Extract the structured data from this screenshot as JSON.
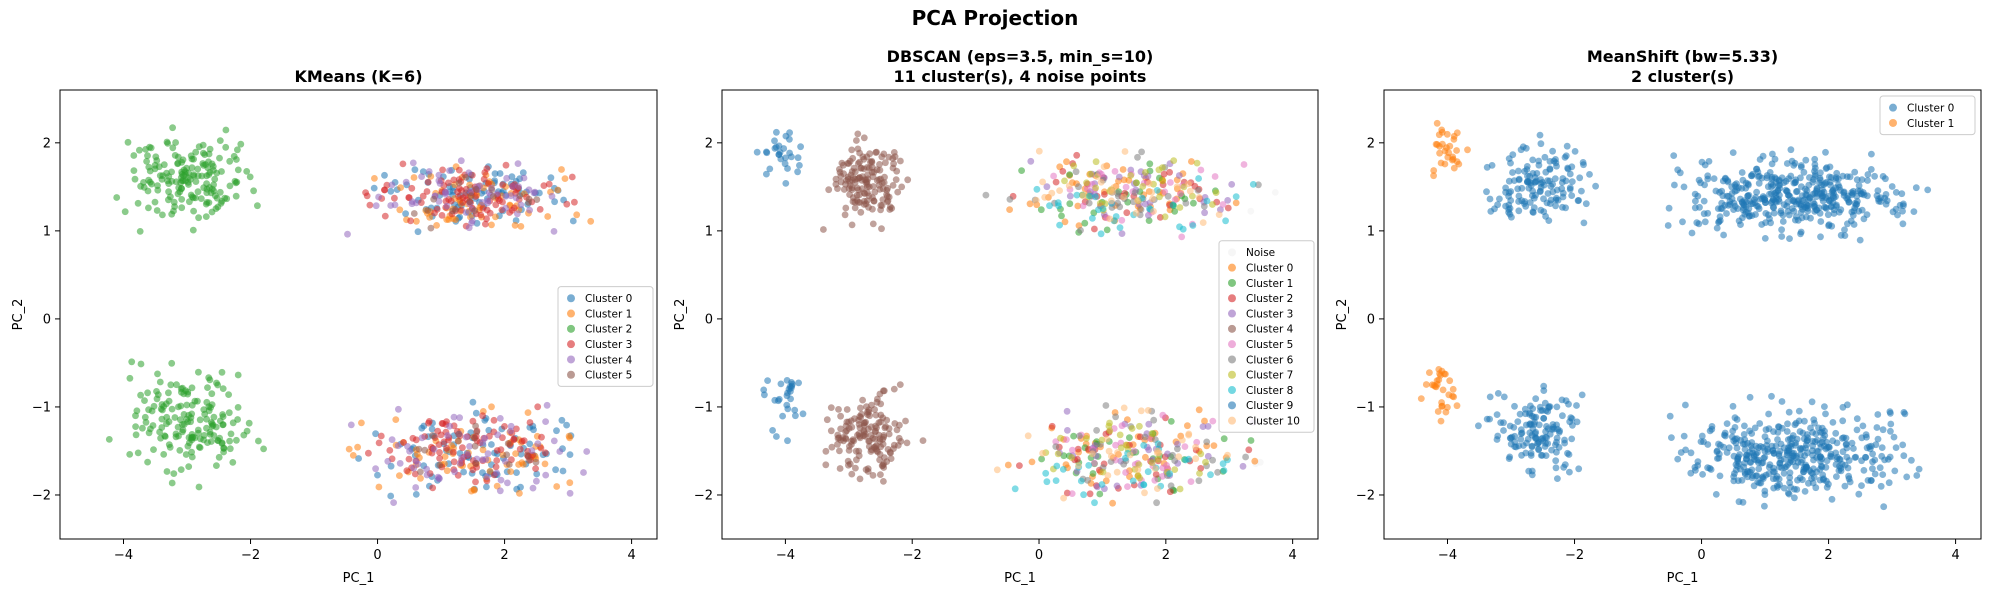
{
  "figure": {
    "suptitle": "PCA Projection"
  },
  "chart_data": [
    {
      "type": "scatter",
      "title_lines": [
        "KMeans  (K=6)"
      ],
      "xlabel": "PC_1",
      "ylabel": "PC_2",
      "xlim": [
        -5,
        4.4
      ],
      "ylim": [
        -2.5,
        2.6
      ],
      "xticks": [
        -4,
        -2,
        0,
        2,
        4
      ],
      "yticks": [
        -2,
        -1,
        0,
        1,
        2
      ],
      "legend": {
        "placement": "center-right",
        "entries": [
          "Cluster 0",
          "Cluster 1",
          "Cluster 2",
          "Cluster 3",
          "Cluster 4",
          "Cluster 5"
        ]
      },
      "series": [
        {
          "name": "Cluster 0",
          "color": "#1f77b4",
          "regions": [
            {
              "x": [
                -1.0,
                3.9
              ],
              "y": [
                0.85,
                2.0
              ],
              "n": 80
            },
            {
              "x": [
                -1.0,
                3.9
              ],
              "y": [
                -2.2,
                -0.85
              ],
              "n": 80
            }
          ]
        },
        {
          "name": "Cluster 1",
          "color": "#ff7f0e",
          "regions": [
            {
              "x": [
                -1.0,
                3.9
              ],
              "y": [
                0.85,
                2.0
              ],
              "n": 70
            },
            {
              "x": [
                -1.0,
                3.9
              ],
              "y": [
                -2.2,
                -0.85
              ],
              "n": 70
            }
          ]
        },
        {
          "name": "Cluster 2",
          "color": "#2ca02c",
          "regions": [
            {
              "x": [
                -4.4,
                -1.5
              ],
              "y": [
                0.9,
                2.3
              ],
              "n": 170
            },
            {
              "x": [
                -4.5,
                -1.5
              ],
              "y": [
                -2.0,
                -0.3
              ],
              "n": 170
            }
          ]
        },
        {
          "name": "Cluster 3",
          "color": "#d62728",
          "regions": [
            {
              "x": [
                -0.6,
                3.4
              ],
              "y": [
                0.9,
                1.9
              ],
              "n": 95
            },
            {
              "x": [
                -0.6,
                3.4
              ],
              "y": [
                -2.0,
                -0.9
              ],
              "n": 95
            }
          ]
        },
        {
          "name": "Cluster 4",
          "color": "#9467bd",
          "regions": [
            {
              "x": [
                -1.0,
                3.9
              ],
              "y": [
                0.75,
                2.0
              ],
              "n": 60
            },
            {
              "x": [
                -1.0,
                3.9
              ],
              "y": [
                -2.25,
                -0.85
              ],
              "n": 60
            }
          ]
        },
        {
          "name": "Cluster 5",
          "color": "#8c564b",
          "regions": [
            {
              "x": [
                -0.2,
                3.2
              ],
              "y": [
                0.9,
                1.8
              ],
              "n": 18
            },
            {
              "x": [
                -0.2,
                3.2
              ],
              "y": [
                -1.9,
                -1.0
              ],
              "n": 18
            }
          ]
        }
      ]
    },
    {
      "type": "scatter",
      "title_lines": [
        "DBSCAN  (eps=3.5, min_s=10)",
        "11 cluster(s), 4 noise points"
      ],
      "xlabel": "PC_1",
      "ylabel": "PC_2",
      "xlim": [
        -5,
        4.4
      ],
      "ylim": [
        -2.5,
        2.6
      ],
      "xticks": [
        -4,
        -2,
        0,
        2,
        4
      ],
      "yticks": [
        -2,
        -1,
        0,
        1,
        2
      ],
      "legend": {
        "placement": "center-right",
        "entries": [
          "Noise",
          "Cluster 0",
          "Cluster 1",
          "Cluster 2",
          "Cluster 3",
          "Cluster 4",
          "Cluster 5",
          "Cluster 6",
          "Cluster 7",
          "Cluster 8",
          "Cluster 9",
          "Cluster 10"
        ]
      },
      "series": [
        {
          "name": "Noise",
          "color": "#f0f0f0",
          "regions": [
            {
              "x": [
                3.0,
                4.0
              ],
              "y": [
                1.0,
                1.6
              ],
              "n": 2
            },
            {
              "x": [
                3.0,
                4.0
              ],
              "y": [
                -1.8,
                -1.3
              ],
              "n": 2
            }
          ]
        },
        {
          "name": "Cluster 0",
          "color": "#ff7f0e",
          "regions": [
            {
              "x": [
                -1.0,
                3.9
              ],
              "y": [
                0.85,
                2.0
              ],
              "n": 45
            },
            {
              "x": [
                -1.0,
                3.9
              ],
              "y": [
                -2.2,
                -0.85
              ],
              "n": 45
            }
          ]
        },
        {
          "name": "Cluster 1",
          "color": "#2ca02c",
          "regions": [
            {
              "x": [
                -1.0,
                3.9
              ],
              "y": [
                0.85,
                2.0
              ],
              "n": 30
            },
            {
              "x": [
                -1.0,
                3.9
              ],
              "y": [
                -2.2,
                -0.85
              ],
              "n": 30
            }
          ]
        },
        {
          "name": "Cluster 2",
          "color": "#d62728",
          "regions": [
            {
              "x": [
                -1.0,
                3.9
              ],
              "y": [
                0.85,
                2.0
              ],
              "n": 30
            },
            {
              "x": [
                -1.0,
                3.9
              ],
              "y": [
                -2.2,
                -0.85
              ],
              "n": 30
            }
          ]
        },
        {
          "name": "Cluster 3",
          "color": "#9467bd",
          "regions": [
            {
              "x": [
                -1.0,
                3.9
              ],
              "y": [
                0.85,
                2.0
              ],
              "n": 30
            },
            {
              "x": [
                -1.0,
                3.9
              ],
              "y": [
                -2.2,
                -0.85
              ],
              "n": 30
            }
          ]
        },
        {
          "name": "Cluster 4",
          "color": "#8c564b",
          "regions": [
            {
              "x": [
                -3.6,
                -1.9
              ],
              "y": [
                0.9,
                2.2
              ],
              "n": 150
            },
            {
              "x": [
                -3.6,
                -1.8
              ],
              "y": [
                -2.0,
                -0.6
              ],
              "n": 150
            }
          ]
        },
        {
          "name": "Cluster 5",
          "color": "#e377c2",
          "regions": [
            {
              "x": [
                -1.0,
                3.9
              ],
              "y": [
                0.85,
                2.0
              ],
              "n": 30
            },
            {
              "x": [
                -1.0,
                3.9
              ],
              "y": [
                -2.2,
                -0.85
              ],
              "n": 30
            }
          ]
        },
        {
          "name": "Cluster 6",
          "color": "#7f7f7f",
          "regions": [
            {
              "x": [
                -1.0,
                3.9
              ],
              "y": [
                0.85,
                2.0
              ],
              "n": 30
            },
            {
              "x": [
                -1.0,
                3.9
              ],
              "y": [
                -2.2,
                -0.85
              ],
              "n": 30
            }
          ]
        },
        {
          "name": "Cluster 7",
          "color": "#bcbd22",
          "regions": [
            {
              "x": [
                -1.0,
                3.9
              ],
              "y": [
                0.85,
                2.0
              ],
              "n": 30
            },
            {
              "x": [
                -1.0,
                3.9
              ],
              "y": [
                -2.2,
                -0.85
              ],
              "n": 30
            }
          ]
        },
        {
          "name": "Cluster 8",
          "color": "#17becf",
          "regions": [
            {
              "x": [
                -1.0,
                3.9
              ],
              "y": [
                0.8,
                1.7
              ],
              "n": 30
            },
            {
              "x": [
                -1.0,
                3.9
              ],
              "y": [
                -2.3,
                -1.2
              ],
              "n": 30
            }
          ]
        },
        {
          "name": "Cluster 9",
          "color": "#1f77b4",
          "regions": [
            {
              "x": [
                -4.5,
                -3.6
              ],
              "y": [
                1.4,
                2.3
              ],
              "n": 28
            },
            {
              "x": [
                -4.5,
                -3.6
              ],
              "y": [
                -1.5,
                -0.3
              ],
              "n": 28
            }
          ]
        },
        {
          "name": "Cluster 10",
          "color": "#ffbb78",
          "regions": [
            {
              "x": [
                -1.0,
                3.9
              ],
              "y": [
                0.85,
                2.0
              ],
              "n": 30
            },
            {
              "x": [
                -1.0,
                3.9
              ],
              "y": [
                -2.2,
                -0.85
              ],
              "n": 30
            }
          ]
        }
      ]
    },
    {
      "type": "scatter",
      "title_lines": [
        "MeanShift  (bw=5.33)",
        "2 cluster(s)"
      ],
      "xlabel": "PC_1",
      "ylabel": "PC_2",
      "xlim": [
        -5,
        4.4
      ],
      "ylim": [
        -2.5,
        2.6
      ],
      "xticks": [
        -4,
        -2,
        0,
        2,
        4
      ],
      "yticks": [
        -2,
        -1,
        0,
        1,
        2
      ],
      "legend": {
        "placement": "top-right",
        "entries": [
          "Cluster 0",
          "Cluster 1"
        ]
      },
      "series": [
        {
          "name": "Cluster 0",
          "color": "#1f77b4",
          "regions": [
            {
              "x": [
                -3.6,
                -1.5
              ],
              "y": [
                0.9,
                2.2
              ],
              "n": 140
            },
            {
              "x": [
                -1.0,
                3.9
              ],
              "y": [
                0.8,
                2.0
              ],
              "n": 420
            },
            {
              "x": [
                -3.6,
                -1.5
              ],
              "y": [
                -1.9,
                -0.6
              ],
              "n": 140
            },
            {
              "x": [
                -1.0,
                3.9
              ],
              "y": [
                -2.25,
                -0.8
              ],
              "n": 420
            }
          ]
        },
        {
          "name": "Cluster 1",
          "color": "#ff7f0e",
          "regions": [
            {
              "x": [
                -4.4,
                -3.6
              ],
              "y": [
                1.5,
                2.3
              ],
              "n": 30
            },
            {
              "x": [
                -4.5,
                -3.7
              ],
              "y": [
                -1.4,
                -0.3
              ],
              "n": 30
            }
          ]
        }
      ]
    }
  ]
}
